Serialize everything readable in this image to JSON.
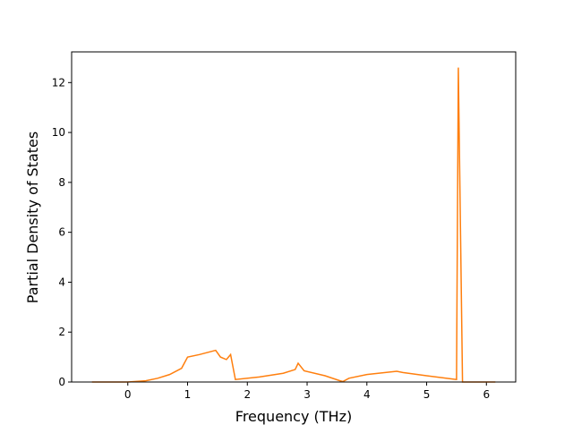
{
  "chart_data": {
    "type": "line",
    "x_label": "Frequency (THz)",
    "y_label": "Partial Density of States",
    "x": [
      -0.6,
      0,
      0.3,
      0.5,
      0.7,
      0.9,
      1.0,
      1.2,
      1.47,
      1.55,
      1.65,
      1.72,
      1.8,
      2.2,
      2.6,
      2.8,
      2.85,
      2.95,
      3.3,
      3.55,
      3.6,
      3.7,
      4.0,
      4.5,
      4.6,
      5.0,
      5.5,
      5.53,
      5.6,
      6.15
    ],
    "series": [
      {
        "color": "#ff7f0e",
        "values": [
          0,
          0,
          0.05,
          0.15,
          0.3,
          0.55,
          1.0,
          1.1,
          1.27,
          1.0,
          0.9,
          1.1,
          0.1,
          0.2,
          0.35,
          0.5,
          0.75,
          0.45,
          0.25,
          0.05,
          0.02,
          0.15,
          0.3,
          0.43,
          0.38,
          0.25,
          0.1,
          12.6,
          0,
          0
        ]
      }
    ],
    "xlim": [
      -0.94,
      6.49
    ],
    "xticks": [
      0,
      1,
      2,
      3,
      4,
      5,
      6
    ],
    "ylim": [
      0,
      13.23
    ],
    "yticks": [
      0,
      2,
      4,
      6,
      8,
      10,
      12
    ]
  }
}
